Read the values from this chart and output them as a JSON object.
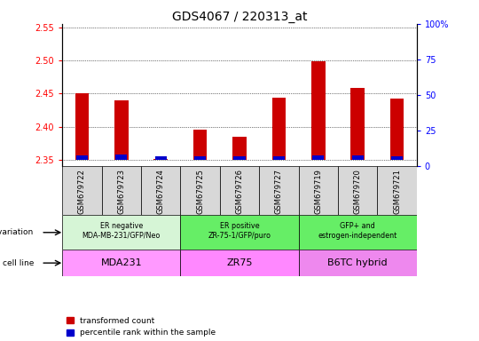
{
  "title": "GDS4067 / 220313_at",
  "samples": [
    "GSM679722",
    "GSM679723",
    "GSM679724",
    "GSM679725",
    "GSM679726",
    "GSM679727",
    "GSM679719",
    "GSM679720",
    "GSM679721"
  ],
  "red_values": [
    2.45,
    2.44,
    2.351,
    2.395,
    2.385,
    2.443,
    2.498,
    2.458,
    2.442
  ],
  "blue_values": [
    2.356,
    2.358,
    2.3553,
    2.3545,
    2.355,
    2.3545,
    2.3565,
    2.3565,
    2.3555
  ],
  "ylim_left": [
    2.34,
    2.555
  ],
  "ylim_right": [
    0,
    100
  ],
  "yticks_left": [
    2.35,
    2.4,
    2.45,
    2.5,
    2.55
  ],
  "yticks_right": [
    0,
    25,
    50,
    75,
    100
  ],
  "ytick_labels_right": [
    "0",
    "25",
    "50",
    "75",
    "100%"
  ],
  "groups": [
    {
      "label": "ER negative\nMDA-MB-231/GFP/Neo",
      "cell_line": "MDA231",
      "color_geno": "#d6f5d6",
      "color_cell": "#ff99ff",
      "start": 0,
      "end": 3
    },
    {
      "label": "ER positive\nZR-75-1/GFP/puro",
      "cell_line": "ZR75",
      "color_geno": "#66ee66",
      "color_cell": "#ff88ff",
      "start": 3,
      "end": 6
    },
    {
      "label": "GFP+ and\nestrogen-independent",
      "cell_line": "B6TC hybrid",
      "color_geno": "#66ee66",
      "color_cell": "#ee88ee",
      "start": 6,
      "end": 9
    }
  ],
  "legend_red": "transformed count",
  "legend_blue": "percentile rank within the sample",
  "bar_width": 0.35,
  "red_color": "#cc0000",
  "blue_color": "#0000cc",
  "baseline": 2.35,
  "gray_bg": "#d8d8d8",
  "sample_label_fontsize": 6.0,
  "geno_fontsize": 5.8,
  "cell_fontsize": 8.0
}
